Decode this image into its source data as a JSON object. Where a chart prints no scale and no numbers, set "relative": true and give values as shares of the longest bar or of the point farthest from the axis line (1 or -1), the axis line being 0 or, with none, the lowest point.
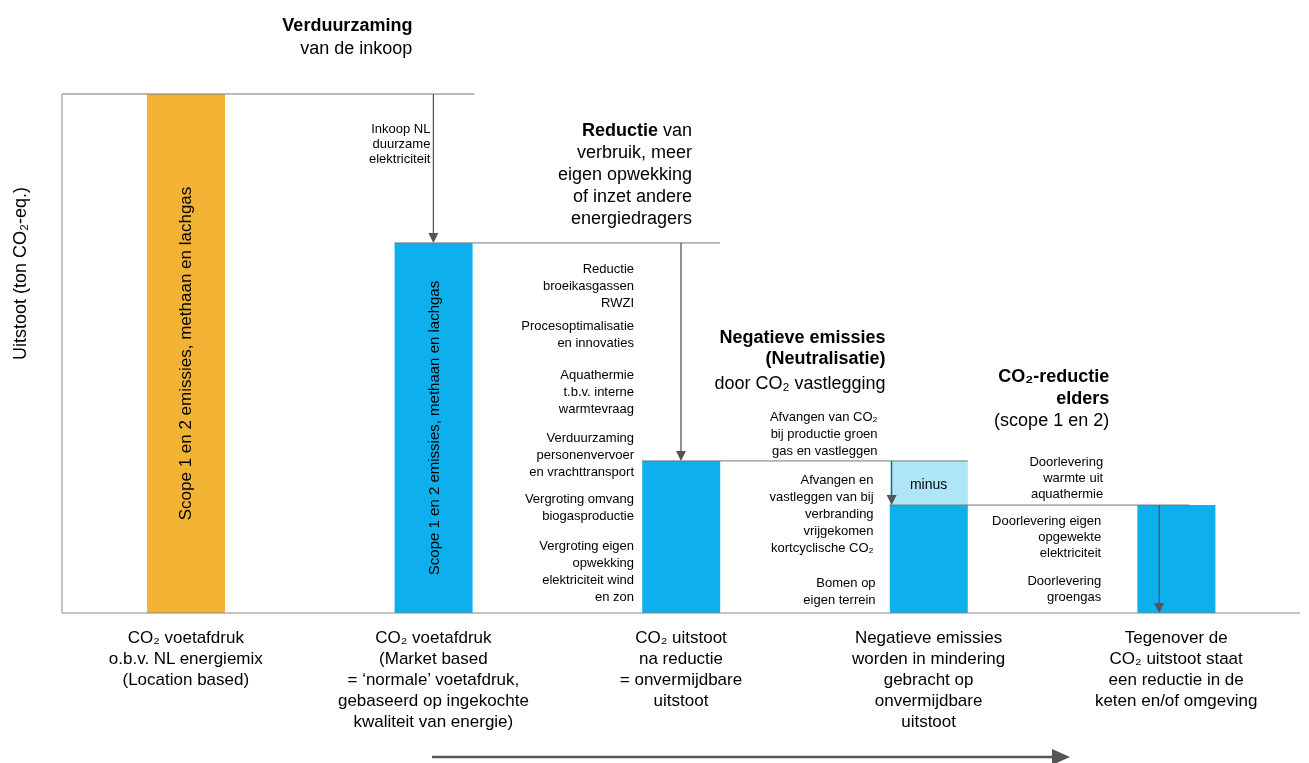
{
  "chart_data": {
    "type": "bar",
    "relative": true,
    "stacked": true,
    "ylabel": "Uitstoot (ton CO₂-eq.)",
    "categories": [
      "CO₂ voetafdruk\no.b.v. NL energiemix\n(Location based)",
      "CO₂ voetafdruk\n(Market based\n= ‘normale’ voetafdruk,\ngebaseerd op ingekochte\nkwaliteit van energie)",
      "CO₂ uitstoot\nna reductie\n= onvermijdbare\nuitstoot",
      "Negatieve emissies\nworden in mindering\ngebracht op\nonvermijdbare\nuitstoot",
      "Tegenover de\nCO₂ uitstoot staat\neen reductie in de\nketen en/of omgeving"
    ],
    "series": [
      {
        "values": [
          1,
          0.713,
          0.293,
          0.208,
          0.208
        ],
        "colors": [
          "#f2b335",
          "#0db0ec",
          "#0db0ec",
          "#0db0ec",
          "#0db0ec"
        ]
      },
      {
        "values": [
          null,
          null,
          null,
          0.085,
          null
        ],
        "color": "#aee6f8"
      }
    ],
    "annotations": [
      "Verduurzaming",
      "van de inkoop",
      "Inkoop NL\nduurzame\nelektriciteit",
      "Reductie van\nverbruik, meer\neigen opwekking\nof inzet andere\nenergiedragers",
      "Reductie\nbroeikasgassen\nRWZI",
      "Procesoptimalisatie\nen innovaties",
      "Aquathermie\nt.b.v. interne\nwarmtevraag",
      "Verduurzaming\npersonenvervoer\nen vrachttransport",
      "Vergroting omvang\nbiogasproductie",
      "Vergroting eigen\nopwekking\nelektriciteit wind\nen zon",
      "Negatieve emissies\n(Neutralisatie)",
      "door CO₂ vastlegging",
      "Afvangen van CO₂\nbij productie groen\ngas en vastleggen",
      "minus",
      "Afvangen en\nvastleggen van bij\nverbranding\nvrijgekomen\nkortcyclische CO₂",
      "Bomen op\neigen terrein",
      "CO₂-reductie\nelders",
      "(scope 1 en 2)",
      "Doorlevering\nwarmte uit\naquathermie",
      "Doorlevering eigen\nopgewekte\nelektriciteit",
      "Doorlevering\ngroengas",
      "Scope 1 en 2 emissies, methaan en lachgas",
      "Scope 1 en 2 emissies, methaan en lachgas"
    ]
  }
}
